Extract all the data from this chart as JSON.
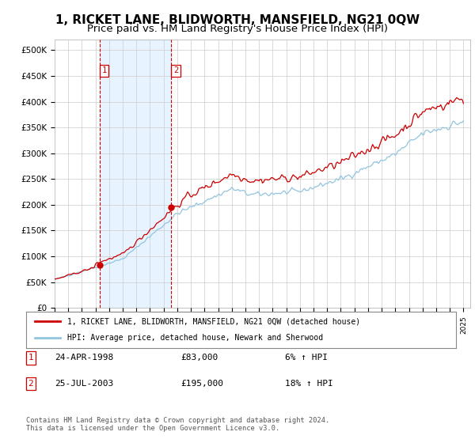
{
  "title": "1, RICKET LANE, BLIDWORTH, MANSFIELD, NG21 0QW",
  "subtitle": "Price paid vs. HM Land Registry's House Price Index (HPI)",
  "ylabel_ticks": [
    "£0",
    "£50K",
    "£100K",
    "£150K",
    "£200K",
    "£250K",
    "£300K",
    "£350K",
    "£400K",
    "£450K",
    "£500K"
  ],
  "ytick_values": [
    0,
    50000,
    100000,
    150000,
    200000,
    250000,
    300000,
    350000,
    400000,
    450000,
    500000
  ],
  "ylim": [
    0,
    520000
  ],
  "xlim_start": 1995.0,
  "xlim_end": 2025.5,
  "hpi_color": "#92c5de",
  "price_color": "#cc0000",
  "sale1_date": 1998.31,
  "sale1_price": 83000,
  "sale2_date": 2003.56,
  "sale2_price": 195000,
  "vline_color": "#cc0000",
  "shade_color": "#ddeeff",
  "legend_label_red": "1, RICKET LANE, BLIDWORTH, MANSFIELD, NG21 0QW (detached house)",
  "legend_label_blue": "HPI: Average price, detached house, Newark and Sherwood",
  "table_rows": [
    {
      "num": "1",
      "date": "24-APR-1998",
      "price": "£83,000",
      "pct": "6% ↑ HPI"
    },
    {
      "num": "2",
      "date": "25-JUL-2003",
      "price": "£195,000",
      "pct": "18% ↑ HPI"
    }
  ],
  "footer": "Contains HM Land Registry data © Crown copyright and database right 2024.\nThis data is licensed under the Open Government Licence v3.0.",
  "bg_color": "#ffffff",
  "grid_color": "#cccccc",
  "title_fontsize": 11,
  "subtitle_fontsize": 9.5
}
